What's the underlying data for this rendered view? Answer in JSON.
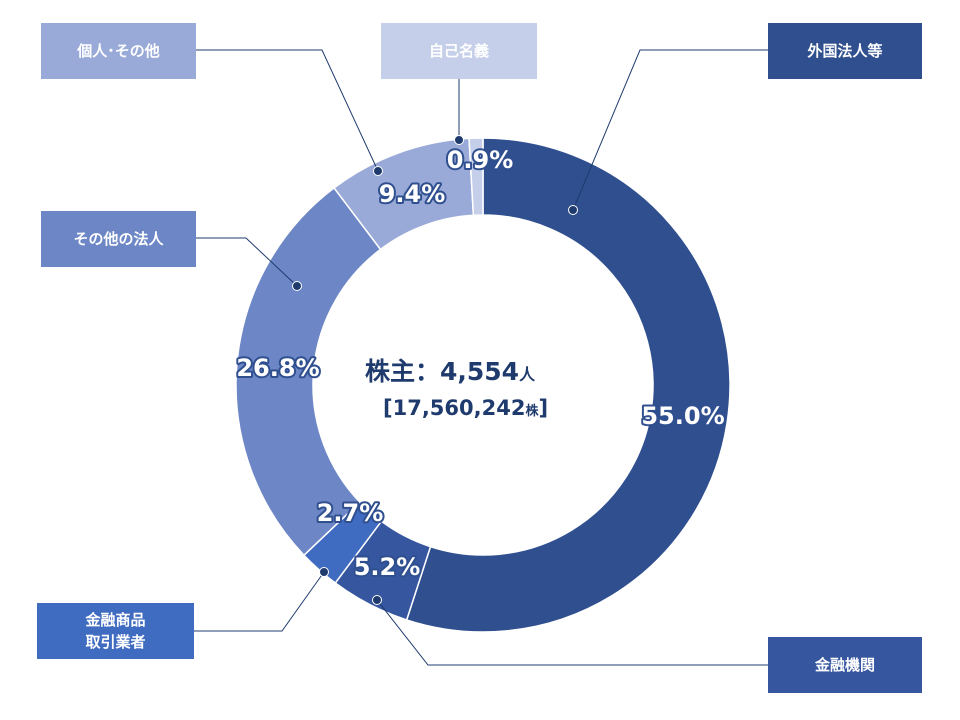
{
  "chart_data": {
    "type": "donut",
    "title": "",
    "center": {
      "line1": "株主：4,554",
      "line1_unit": "人",
      "line2": "[17,560,242",
      "line2_unit": "株",
      "line2_close": "]"
    },
    "slices": [
      {
        "name": "外国法人等",
        "value": 55.0,
        "label": "55.0%",
        "color": "#2f4f8f"
      },
      {
        "name": "金融機関",
        "value": 5.2,
        "label": "5.2%",
        "color": "#3656a0"
      },
      {
        "name": "金融商品\n取引業者",
        "value": 2.7,
        "label": "2.7%",
        "color": "#3f6bc0"
      },
      {
        "name": "その他の法人",
        "value": 26.8,
        "label": "26.8%",
        "color": "#6c86c6"
      },
      {
        "name": "個人･その他",
        "value": 9.4,
        "label": "9.4%",
        "color": "#9aaad8"
      },
      {
        "name": "自己名義",
        "value": 0.9,
        "label": "0.9%",
        "color": "#c6cfe9"
      }
    ]
  }
}
